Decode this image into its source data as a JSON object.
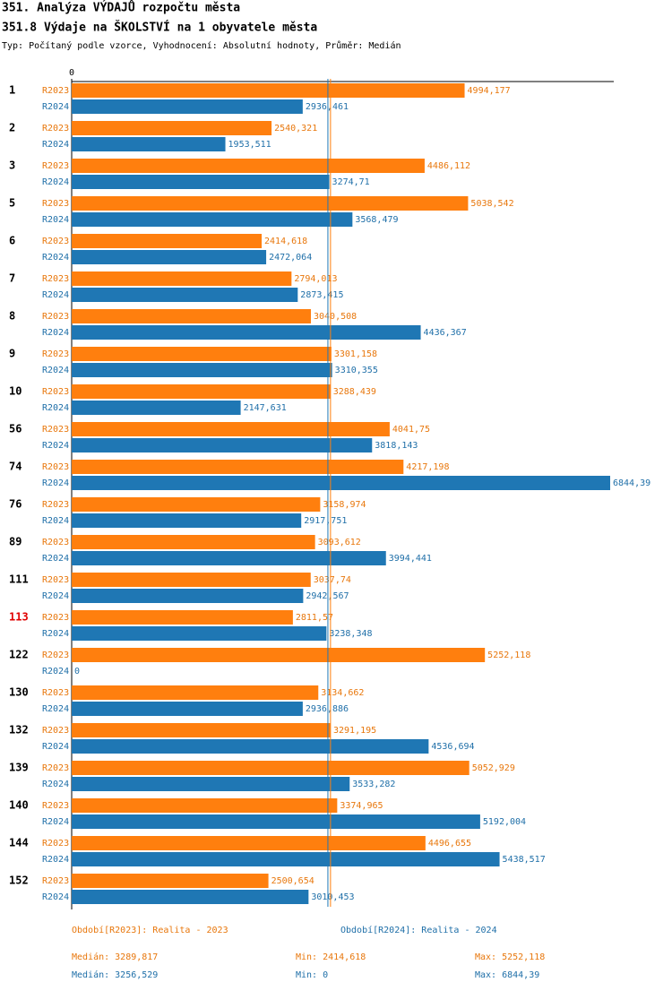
{
  "chart_data": {
    "type": "bar",
    "orientation": "horizontal",
    "title": "351. Analýza VÝDAJŮ rozpočtu města",
    "subtitle": "351.8 Výdaje na ŠKOLSTVÍ na 1 obyvatele města",
    "note": "Typ: Počítaný podle vzorce, Vyhodnocení: Absolutní hodnoty, Průměr: Medián",
    "categories": [
      "1",
      "2",
      "3",
      "5",
      "6",
      "7",
      "8",
      "9",
      "10",
      "56",
      "74",
      "76",
      "89",
      "111",
      "113",
      "122",
      "130",
      "132",
      "139",
      "140",
      "144",
      "152"
    ],
    "highlight_index": 14,
    "highlight_color": "#e00000",
    "xlim": [
      0,
      6844.39
    ],
    "xticks": [
      0
    ],
    "series": [
      {
        "name": "R2023",
        "color": "#ff7f0e",
        "text_color": "#e8770c",
        "values": [
          4994.177,
          2540.321,
          4486.112,
          5038.542,
          2414.618,
          2794.013,
          3040.508,
          3301.158,
          3288.439,
          4041.75,
          4217.198,
          3158.974,
          3093.612,
          3037.74,
          2811.57,
          5252.118,
          3134.662,
          3291.195,
          5052.929,
          3374.965,
          4496.655,
          2500.654
        ],
        "value_labels": [
          "4994,177",
          "2540,321",
          "4486,112",
          "5038,542",
          "2414,618",
          "2794,013",
          "3040,508",
          "3301,158",
          "3288,439",
          "4041,75",
          "4217,198",
          "3158,974",
          "3093,612",
          "3037,74",
          "2811,57",
          "5252,118",
          "3134,662",
          "3291,195",
          "5052,929",
          "3374,965",
          "4496,655",
          "2500,654"
        ],
        "legend": "Období[R2023]: Realita - 2023",
        "median": 3289.817,
        "median_label": "Medián: 3289,817",
        "min_label": "Min: 2414,618",
        "max_label": "Max: 5252,118"
      },
      {
        "name": "R2024",
        "color": "#1f77b4",
        "text_color": "#1f6fa8",
        "values": [
          2936.461,
          1953.511,
          3274.71,
          3568.479,
          2472.064,
          2873.415,
          4436.367,
          3310.355,
          2147.631,
          3818.143,
          6844.39,
          2917.751,
          3994.441,
          2942.567,
          3238.348,
          0,
          2936.886,
          4536.694,
          3533.282,
          5192.004,
          5438.517,
          3010.453
        ],
        "value_labels": [
          "2936,461",
          "1953,511",
          "3274,71",
          "3568,479",
          "2472,064",
          "2873,415",
          "4436,367",
          "3310,355",
          "2147,631",
          "3818,143",
          "6844,39",
          "2917,751",
          "3994,441",
          "2942,567",
          "3238,348",
          "0",
          "2936,886",
          "4536,694",
          "3533,282",
          "5192,004",
          "5438,517",
          "3010,453"
        ],
        "legend": "Období[R2024]: Realita - 2024",
        "median": 3256.529,
        "median_label": "Medián: 3256,529",
        "min_label": "Min: 0",
        "max_label": "Max: 6844,39"
      }
    ]
  }
}
